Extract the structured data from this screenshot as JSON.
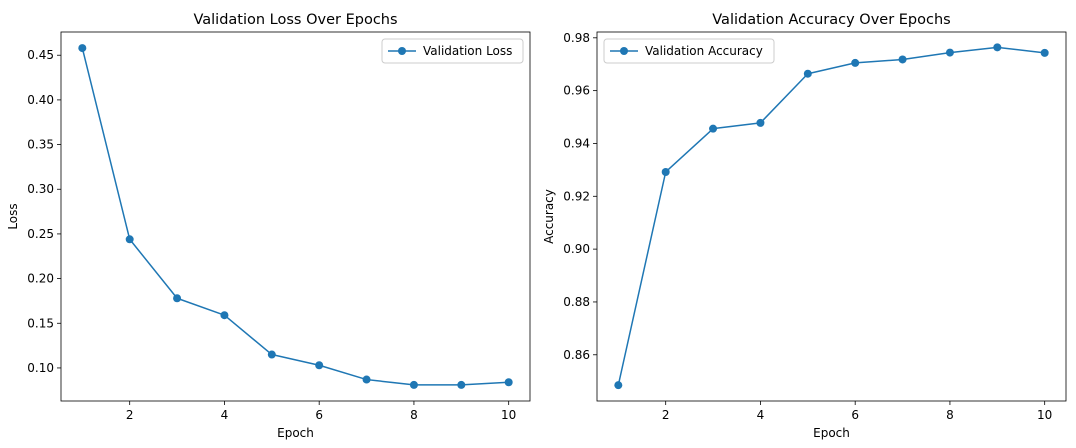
{
  "chart_data": [
    {
      "type": "line",
      "title": "Validation Loss Over Epochs",
      "xlabel": "Epoch",
      "ylabel": "Loss",
      "xlim": [
        0.55,
        10.45
      ],
      "ylim": [
        0.063,
        0.476
      ],
      "xticks": [
        2,
        4,
        6,
        8,
        10
      ],
      "yticks": [
        0.1,
        0.15,
        0.2,
        0.25,
        0.3,
        0.35,
        0.4,
        0.45
      ],
      "ytick_labels": [
        "0.10",
        "0.15",
        "0.20",
        "0.25",
        "0.30",
        "0.35",
        "0.40",
        "0.45"
      ],
      "grid": false,
      "legend_position": "top-right",
      "color": "#1f77b4",
      "x": [
        1,
        2,
        3,
        4,
        5,
        6,
        7,
        8,
        9,
        10
      ],
      "series": [
        {
          "name": "Validation Loss",
          "values": [
            0.458,
            0.244,
            0.178,
            0.159,
            0.115,
            0.103,
            0.087,
            0.081,
            0.081,
            0.084
          ]
        }
      ]
    },
    {
      "type": "line",
      "title": "Validation Accuracy Over Epochs",
      "xlabel": "Epoch",
      "ylabel": "Accuracy",
      "xlim": [
        0.55,
        10.45
      ],
      "ylim": [
        0.8425,
        0.9822
      ],
      "xticks": [
        2,
        4,
        6,
        8,
        10
      ],
      "yticks": [
        0.86,
        0.88,
        0.9,
        0.92,
        0.94,
        0.96,
        0.98
      ],
      "ytick_labels": [
        "0.86",
        "0.88",
        "0.90",
        "0.92",
        "0.94",
        "0.96",
        "0.98"
      ],
      "grid": false,
      "legend_position": "top-left",
      "color": "#1f77b4",
      "x": [
        1,
        2,
        3,
        4,
        5,
        6,
        7,
        8,
        9,
        10
      ],
      "series": [
        {
          "name": "Validation Accuracy",
          "values": [
            0.8485,
            0.9292,
            0.9456,
            0.9478,
            0.9664,
            0.9705,
            0.9718,
            0.9744,
            0.9764,
            0.9743
          ]
        }
      ]
    }
  ]
}
